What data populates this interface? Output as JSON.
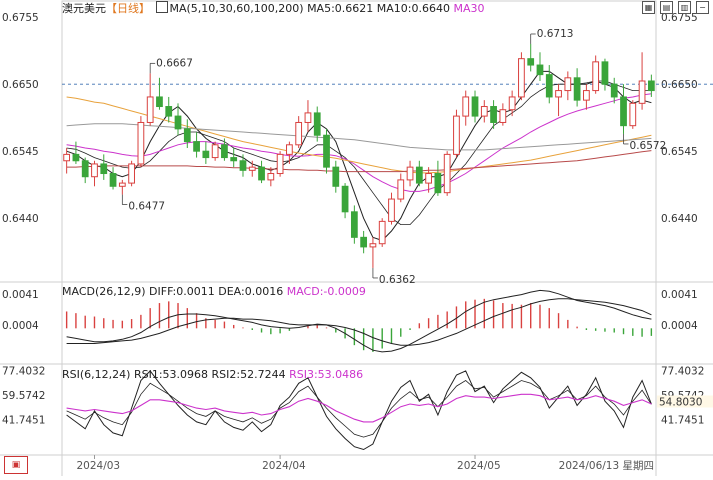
{
  "header": {
    "symbol": "澳元美元",
    "period": "【日线】",
    "ma_label": "MA(5,10,30,60,100,200)",
    "ma5": "MA5:0.6621",
    "ma10": "MA10:0.6640",
    "ma30": "MA30"
  },
  "macd": {
    "title": "MACD(26,12,9)",
    "diff": "DIFF:0.0011",
    "dea": "DEA:0.0016",
    "macd": "MACD:-0.0009"
  },
  "rsi": {
    "title": "RSI(6,12,24)",
    "rsi1": "RSI1:53.0968",
    "rsi2": "RSI2:52.7244",
    "rsi3": "RSI3:53.0486"
  },
  "axis": {
    "price_left": [
      "0.6755",
      "0.6650",
      "0.6545",
      "0.6440"
    ],
    "price_right": [
      "0.6755",
      "0.6650",
      "0.6545",
      "0.6440"
    ],
    "macd_left": [
      "0.0041",
      "0.0004"
    ],
    "macd_right": [
      "0.0041",
      "0.0004"
    ],
    "rsi_left": [
      "77.4032",
      "59.5742",
      "41.7451"
    ],
    "rsi_right": [
      "77.4032",
      "59.5742",
      "41.7451"
    ],
    "rsi_current": "54.8030",
    "dates": [
      "2024/03",
      "2024/04",
      "2024/05"
    ],
    "current_date": "2024/06/13 星期四"
  },
  "annotations": {
    "high1": "0.6667",
    "low1": "0.6477",
    "low2": "0.6362",
    "high2": "0.6713",
    "low3": "0.6572"
  },
  "colors": {
    "up": "#d9413f",
    "down": "#3aa53a",
    "ma5": "#222222",
    "ma10": "#222222",
    "ma30": "#cc33cc",
    "ma60": "#e8a23c",
    "ma100": "#999999",
    "ma200": "#b84a4a",
    "diff": "#222222",
    "dea": "#cc33cc",
    "rsi1": "#222222",
    "rsi2": "#222222",
    "rsi3": "#cc33cc"
  },
  "chart_data": {
    "type": "candlestick",
    "symbol": "AUD/USD",
    "price_range": [
      0.634,
      0.676
    ],
    "ohlc": [
      [
        0.653,
        0.655,
        0.651,
        0.654
      ],
      [
        0.654,
        0.656,
        0.6525,
        0.653
      ],
      [
        0.653,
        0.6535,
        0.6495,
        0.6505
      ],
      [
        0.6505,
        0.653,
        0.649,
        0.6525
      ],
      [
        0.6525,
        0.654,
        0.65,
        0.651
      ],
      [
        0.651,
        0.652,
        0.6485,
        0.649
      ],
      [
        0.649,
        0.65,
        0.6477,
        0.6495
      ],
      [
        0.6495,
        0.653,
        0.649,
        0.6525
      ],
      [
        0.6525,
        0.66,
        0.652,
        0.659
      ],
      [
        0.659,
        0.6667,
        0.6585,
        0.663
      ],
      [
        0.663,
        0.666,
        0.661,
        0.6615
      ],
      [
        0.6615,
        0.663,
        0.659,
        0.66
      ],
      [
        0.66,
        0.662,
        0.657,
        0.658
      ],
      [
        0.658,
        0.6595,
        0.655,
        0.656
      ],
      [
        0.656,
        0.6575,
        0.6535,
        0.6545
      ],
      [
        0.6545,
        0.656,
        0.6525,
        0.6535
      ],
      [
        0.6535,
        0.656,
        0.653,
        0.6555
      ],
      [
        0.6555,
        0.6565,
        0.653,
        0.6535
      ],
      [
        0.6535,
        0.655,
        0.652,
        0.653
      ],
      [
        0.653,
        0.654,
        0.6505,
        0.6515
      ],
      [
        0.6515,
        0.653,
        0.6505,
        0.652
      ],
      [
        0.652,
        0.653,
        0.6495,
        0.65
      ],
      [
        0.65,
        0.652,
        0.649,
        0.651
      ],
      [
        0.651,
        0.6545,
        0.6505,
        0.654
      ],
      [
        0.654,
        0.656,
        0.6525,
        0.6555
      ],
      [
        0.6555,
        0.66,
        0.655,
        0.659
      ],
      [
        0.659,
        0.6625,
        0.6575,
        0.6605
      ],
      [
        0.6605,
        0.6615,
        0.656,
        0.657
      ],
      [
        0.657,
        0.658,
        0.651,
        0.652
      ],
      [
        0.652,
        0.653,
        0.648,
        0.649
      ],
      [
        0.649,
        0.6495,
        0.644,
        0.645
      ],
      [
        0.645,
        0.646,
        0.64,
        0.641
      ],
      [
        0.641,
        0.642,
        0.6385,
        0.6395
      ],
      [
        0.6395,
        0.641,
        0.6362,
        0.64
      ],
      [
        0.64,
        0.644,
        0.6395,
        0.6435
      ],
      [
        0.6435,
        0.648,
        0.643,
        0.647
      ],
      [
        0.647,
        0.651,
        0.6465,
        0.65
      ],
      [
        0.65,
        0.653,
        0.649,
        0.652
      ],
      [
        0.652,
        0.653,
        0.649,
        0.6495
      ],
      [
        0.6495,
        0.652,
        0.648,
        0.651
      ],
      [
        0.651,
        0.653,
        0.6475,
        0.648
      ],
      [
        0.648,
        0.6545,
        0.6475,
        0.654
      ],
      [
        0.654,
        0.661,
        0.6535,
        0.66
      ],
      [
        0.66,
        0.664,
        0.6585,
        0.663
      ],
      [
        0.663,
        0.664,
        0.659,
        0.66
      ],
      [
        0.66,
        0.6625,
        0.659,
        0.6615
      ],
      [
        0.6615,
        0.6625,
        0.658,
        0.659
      ],
      [
        0.659,
        0.662,
        0.6585,
        0.661
      ],
      [
        0.661,
        0.664,
        0.66,
        0.663
      ],
      [
        0.663,
        0.67,
        0.6625,
        0.669
      ],
      [
        0.669,
        0.6713,
        0.667,
        0.668
      ],
      [
        0.668,
        0.67,
        0.6655,
        0.6665
      ],
      [
        0.6665,
        0.668,
        0.662,
        0.663
      ],
      [
        0.663,
        0.665,
        0.66,
        0.664
      ],
      [
        0.664,
        0.667,
        0.6625,
        0.666
      ],
      [
        0.666,
        0.6675,
        0.6615,
        0.6625
      ],
      [
        0.6625,
        0.665,
        0.661,
        0.664
      ],
      [
        0.664,
        0.6695,
        0.6635,
        0.6685
      ],
      [
        0.6685,
        0.669,
        0.664,
        0.665
      ],
      [
        0.665,
        0.666,
        0.662,
        0.663
      ],
      [
        0.663,
        0.665,
        0.6572,
        0.6585
      ],
      [
        0.6585,
        0.6625,
        0.658,
        0.662
      ],
      [
        0.662,
        0.67,
        0.661,
        0.6655
      ],
      [
        0.6655,
        0.6665,
        0.663,
        0.664
      ]
    ],
    "ma_series": [
      {
        "name": "MA5",
        "values": [
          0.6545,
          0.654,
          0.653,
          0.6522,
          0.652,
          0.651,
          0.6505,
          0.651,
          0.653,
          0.656,
          0.6585,
          0.6605,
          0.6615,
          0.66,
          0.658,
          0.6565,
          0.6555,
          0.6545,
          0.654,
          0.6535,
          0.6525,
          0.652,
          0.6515,
          0.652,
          0.653,
          0.6545,
          0.6575,
          0.659,
          0.658,
          0.656,
          0.652,
          0.648,
          0.644,
          0.641,
          0.6405,
          0.642,
          0.644,
          0.647,
          0.6495,
          0.6505,
          0.6505,
          0.651,
          0.6535,
          0.656,
          0.6585,
          0.6605,
          0.661,
          0.6605,
          0.661,
          0.663,
          0.665,
          0.667,
          0.667,
          0.666,
          0.665,
          0.665,
          0.665,
          0.6655,
          0.665,
          0.6645,
          0.663,
          0.662,
          0.6625,
          0.6621
        ]
      },
      {
        "name": "MA10",
        "values": [
          0.655,
          0.6548,
          0.6542,
          0.6535,
          0.653,
          0.6525,
          0.652,
          0.6518,
          0.652,
          0.653,
          0.6545,
          0.656,
          0.657,
          0.6575,
          0.6575,
          0.657,
          0.6565,
          0.656,
          0.655,
          0.6545,
          0.654,
          0.6535,
          0.653,
          0.6528,
          0.653,
          0.6535,
          0.6545,
          0.6555,
          0.6555,
          0.6545,
          0.6535,
          0.652,
          0.65,
          0.648,
          0.646,
          0.644,
          0.643,
          0.643,
          0.6445,
          0.6465,
          0.6485,
          0.6495,
          0.651,
          0.6525,
          0.6545,
          0.6565,
          0.6585,
          0.6595,
          0.6605,
          0.6615,
          0.663,
          0.664,
          0.6648,
          0.665,
          0.665,
          0.665,
          0.6652,
          0.6655,
          0.6655,
          0.665,
          0.6645,
          0.664,
          0.664,
          0.664
        ]
      },
      {
        "name": "MA30",
        "values": [
          0.6555,
          0.6553,
          0.655,
          0.6548,
          0.6545,
          0.6543,
          0.654,
          0.6538,
          0.6537,
          0.654,
          0.6545,
          0.655,
          0.6555,
          0.6558,
          0.656,
          0.656,
          0.6558,
          0.6556,
          0.6553,
          0.655,
          0.6548,
          0.6545,
          0.6543,
          0.654,
          0.6538,
          0.6537,
          0.6538,
          0.654,
          0.654,
          0.6538,
          0.6533,
          0.6525,
          0.6515,
          0.6505,
          0.6497,
          0.649,
          0.6485,
          0.6482,
          0.6482,
          0.6485,
          0.649,
          0.6495,
          0.6502,
          0.651,
          0.652,
          0.653,
          0.654,
          0.655,
          0.6558,
          0.6566,
          0.6575,
          0.6583,
          0.659,
          0.6597,
          0.6603,
          0.6608,
          0.6612,
          0.6616,
          0.662,
          0.6624,
          0.6628,
          0.663,
          0.6633,
          0.6635
        ]
      },
      {
        "name": "MA60",
        "values": [
          0.663,
          0.6628,
          0.6625,
          0.6622,
          0.662,
          0.6616,
          0.6612,
          0.6608,
          0.6604,
          0.66,
          0.6596,
          0.6592,
          0.6588,
          0.6584,
          0.658,
          0.6576,
          0.6572,
          0.6568,
          0.6564,
          0.656,
          0.6557,
          0.6554,
          0.6551,
          0.6548,
          0.6545,
          0.6542,
          0.654,
          0.6538,
          0.6536,
          0.6534,
          0.6531,
          0.6528,
          0.6525,
          0.6522,
          0.6519,
          0.6516,
          0.6514,
          0.6512,
          0.6511,
          0.6511,
          0.6512,
          0.6513,
          0.6515,
          0.6517,
          0.6519,
          0.6521,
          0.6523,
          0.6525,
          0.6527,
          0.6529,
          0.6531,
          0.6534,
          0.6537,
          0.654,
          0.6543,
          0.6546,
          0.6549,
          0.6552,
          0.6555,
          0.6558,
          0.6561,
          0.6564,
          0.6567,
          0.657
        ]
      },
      {
        "name": "MA100",
        "values": [
          0.6585,
          0.6586,
          0.6587,
          0.6588,
          0.6588,
          0.6588,
          0.6588,
          0.6587,
          0.6586,
          0.6585,
          0.6584,
          0.6583,
          0.6582,
          0.6581,
          0.658,
          0.6579,
          0.6578,
          0.6577,
          0.6576,
          0.6575,
          0.6574,
          0.6573,
          0.6572,
          0.6571,
          0.657,
          0.6569,
          0.6568,
          0.6567,
          0.6566,
          0.6565,
          0.6564,
          0.6563,
          0.6561,
          0.6559,
          0.6557,
          0.6555,
          0.6553,
          0.6551,
          0.655,
          0.6549,
          0.6548,
          0.6547,
          0.6547,
          0.6547,
          0.6547,
          0.6547,
          0.6548,
          0.6549,
          0.655,
          0.6551,
          0.6552,
          0.6553,
          0.6554,
          0.6555,
          0.6556,
          0.6557,
          0.6558,
          0.6559,
          0.656,
          0.6561,
          0.6562,
          0.6563,
          0.6564,
          0.6565
        ]
      },
      {
        "name": "MA200",
        "values": [
          0.652,
          0.652,
          0.6521,
          0.6521,
          0.6522,
          0.6522,
          0.6522,
          0.6522,
          0.6522,
          0.6522,
          0.6522,
          0.6522,
          0.6522,
          0.6522,
          0.6521,
          0.6521,
          0.652,
          0.652,
          0.6519,
          0.6519,
          0.6518,
          0.6518,
          0.6517,
          0.6517,
          0.6516,
          0.6516,
          0.6515,
          0.6515,
          0.6514,
          0.6514,
          0.6513,
          0.6513,
          0.6513,
          0.6513,
          0.6513,
          0.6513,
          0.6513,
          0.6514,
          0.6514,
          0.6515,
          0.6515,
          0.6516,
          0.6517,
          0.6518,
          0.6519,
          0.652,
          0.6521,
          0.6522,
          0.6523,
          0.6524,
          0.6525,
          0.6526,
          0.6527,
          0.6528,
          0.6529,
          0.653,
          0.6532,
          0.6534,
          0.6536,
          0.6538,
          0.654,
          0.6542,
          0.6544,
          0.6546
        ]
      }
    ],
    "macd_hist": [
      0.002,
      0.0018,
      0.0015,
      0.0014,
      0.0012,
      0.001,
      0.0009,
      0.0011,
      0.0016,
      0.0024,
      0.003,
      0.0032,
      0.003,
      0.0024,
      0.0018,
      0.0012,
      0.001,
      0.0008,
      0.0004,
      0.0001,
      -0.0002,
      -0.0005,
      -0.0007,
      -0.0006,
      -0.0003,
      0.0,
      0.0004,
      0.0005,
      0.0001,
      -0.0005,
      -0.0012,
      -0.002,
      -0.0026,
      -0.0028,
      -0.0024,
      -0.0018,
      -0.001,
      -0.0002,
      0.0006,
      0.0012,
      0.0016,
      0.002,
      0.0026,
      0.0032,
      0.0034,
      0.0035,
      0.0033,
      0.003,
      0.0029,
      0.0028,
      0.003,
      0.0028,
      0.0024,
      0.0018,
      0.001,
      0.0002,
      -0.0002,
      -0.0003,
      -0.0004,
      -0.0005,
      -0.0007,
      -0.0009,
      -0.001,
      -0.0009
    ],
    "diff": [
      -0.001,
      -0.0012,
      -0.0014,
      -0.0016,
      -0.0016,
      -0.0015,
      -0.0013,
      -0.001,
      -0.0005,
      0.0002,
      0.0008,
      0.0013,
      0.0016,
      0.0017,
      0.0017,
      0.0016,
      0.0015,
      0.0013,
      0.0011,
      0.0009,
      0.0007,
      0.0004,
      0.0002,
      0.0001,
      0.0,
      0.0001,
      0.0003,
      0.0005,
      0.0004,
      0.0,
      -0.0006,
      -0.0013,
      -0.002,
      -0.0026,
      -0.0028,
      -0.0027,
      -0.0024,
      -0.0019,
      -0.0013,
      -0.0007,
      -0.0001,
      0.0005,
      0.0012,
      0.002,
      0.0026,
      0.0031,
      0.0034,
      0.0036,
      0.0038,
      0.004,
      0.0043,
      0.0045,
      0.0044,
      0.0041,
      0.0037,
      0.0033,
      0.0031,
      0.0029,
      0.0027,
      0.0024,
      0.002,
      0.0016,
      0.0013,
      0.0011
    ],
    "dea": [
      -0.0018,
      -0.0018,
      -0.0018,
      -0.0018,
      -0.0017,
      -0.0016,
      -0.0015,
      -0.0014,
      -0.0012,
      -0.0009,
      -0.0006,
      -0.0002,
      0.0002,
      0.0005,
      0.0008,
      0.001,
      0.0011,
      0.0012,
      0.0012,
      0.0011,
      0.0011,
      0.001,
      0.0009,
      0.0007,
      0.0005,
      0.0004,
      0.0004,
      0.0004,
      0.0004,
      0.0003,
      0.0001,
      -0.0002,
      -0.0006,
      -0.0011,
      -0.0015,
      -0.0018,
      -0.002,
      -0.002,
      -0.0019,
      -0.0017,
      -0.0014,
      -0.001,
      -0.0006,
      -0.0001,
      0.0004,
      0.0009,
      0.0014,
      0.0018,
      0.0022,
      0.0025,
      0.0029,
      0.0032,
      0.0034,
      0.0035,
      0.0035,
      0.0034,
      0.0033,
      0.0032,
      0.0031,
      0.0029,
      0.0027,
      0.0024,
      0.0021,
      0.0016
    ],
    "rsi1": [
      45,
      40,
      35,
      48,
      38,
      32,
      30,
      50,
      70,
      77,
      68,
      60,
      52,
      45,
      40,
      38,
      48,
      40,
      36,
      34,
      40,
      33,
      38,
      52,
      58,
      68,
      72,
      58,
      44,
      35,
      28,
      22,
      20,
      24,
      40,
      55,
      65,
      70,
      55,
      60,
      45,
      62,
      74,
      77,
      62,
      66,
      54,
      64,
      70,
      76,
      72,
      65,
      50,
      58,
      66,
      52,
      60,
      72,
      55,
      48,
      36,
      58,
      70,
      53
    ],
    "rsi2": [
      48,
      45,
      42,
      47,
      43,
      40,
      38,
      47,
      60,
      68,
      64,
      60,
      55,
      50,
      46,
      44,
      48,
      44,
      42,
      40,
      43,
      39,
      42,
      50,
      54,
      62,
      66,
      58,
      50,
      43,
      37,
      31,
      29,
      31,
      40,
      50,
      57,
      62,
      56,
      58,
      51,
      58,
      66,
      70,
      64,
      65,
      58,
      62,
      66,
      70,
      68,
      64,
      56,
      59,
      63,
      56,
      59,
      66,
      58,
      53,
      45,
      55,
      63,
      52.7
    ],
    "rsi3": [
      50,
      49,
      48,
      49,
      48,
      47,
      46,
      48,
      52,
      56,
      56,
      55,
      54,
      52,
      50,
      49,
      50,
      48,
      47,
      46,
      47,
      45,
      46,
      49,
      51,
      55,
      57,
      55,
      52,
      48,
      45,
      42,
      40,
      40,
      43,
      47,
      51,
      53,
      52,
      53,
      51,
      53,
      57,
      59,
      58,
      58,
      57,
      58,
      59,
      60,
      60,
      59,
      56,
      57,
      58,
      56,
      57,
      59,
      57,
      55,
      52,
      54,
      56,
      53
    ]
  }
}
